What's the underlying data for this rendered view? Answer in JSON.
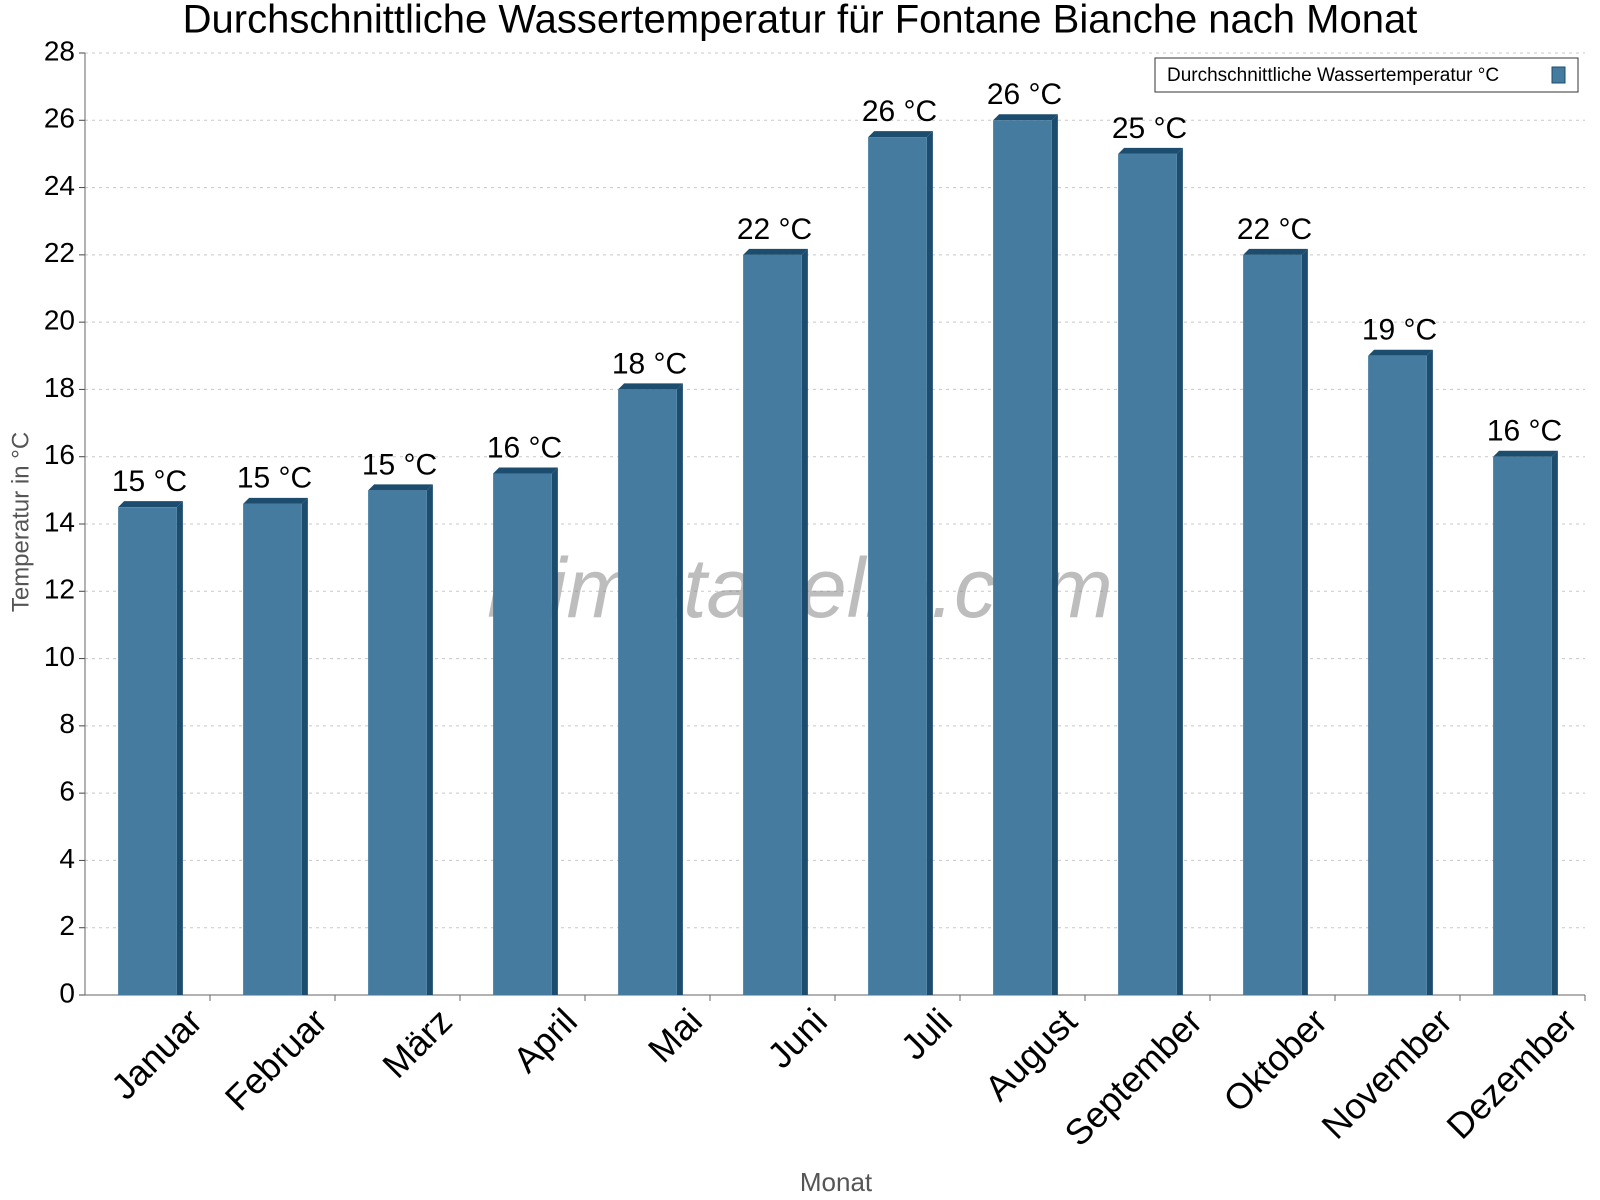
{
  "chart_data": {
    "type": "bar",
    "title": "Durchschnittliche Wassertemperatur für Fontane Bianche nach Monat",
    "x_label": "Monat",
    "y_label": "Temperatur in °C",
    "watermark": "klimatabelle.com",
    "categories": [
      "Januar",
      "Februar",
      "März",
      "April",
      "Mai",
      "Juni",
      "Juli",
      "August",
      "September",
      "Oktober",
      "November",
      "Dezember"
    ],
    "series": [
      {
        "name": "Durchschnittliche Wassertemperatur °C",
        "color": "#447b9f",
        "values": [
          14.5,
          14.6,
          15,
          15.5,
          18,
          22,
          25.5,
          26,
          25,
          22,
          19,
          16
        ],
        "value_labels": [
          "15 °C",
          "15 °C",
          "15 °C",
          "16 °C",
          "18 °C",
          "22 °C",
          "26 °C",
          "26 °C",
          "25 °C",
          "22 °C",
          "19 °C",
          "16 °C"
        ]
      }
    ],
    "ylim": [
      0,
      28
    ],
    "yticks": [
      0,
      2,
      4,
      6,
      8,
      10,
      12,
      14,
      16,
      18,
      20,
      22,
      24,
      26,
      28
    ],
    "grid": true,
    "legend": "upper right"
  }
}
